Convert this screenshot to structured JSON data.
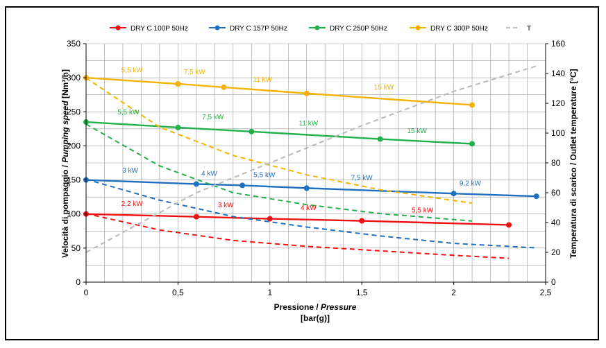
{
  "chart_data": {
    "type": "line",
    "legend_position": "top",
    "grid": true,
    "xlabel": "Pressione / Pressure",
    "xlabel_plain": "Pressione / ",
    "xlabel_italic": "Pressure",
    "xunit": "[bar(g)]",
    "ylabel": "Velocità di pompaggio / Pumping speed [Nm³/h]",
    "ylabel_plain1": "Velocità di pompaggio / ",
    "ylabel_italic": "Pumping speed",
    "ylabel_plain2": " [Nm³/h]",
    "y2label": "Temperatura di scarico / Outlet temperature [°C]",
    "xlim": [
      0,
      2.5
    ],
    "ylim": [
      0,
      350
    ],
    "y2lim": [
      0,
      160
    ],
    "x_ticks": [
      "0",
      "0,5",
      "1",
      "1,5",
      "2",
      "2,5"
    ],
    "y_ticks": [
      "0",
      "50",
      "100",
      "150",
      "200",
      "250",
      "300",
      "350"
    ],
    "y2_ticks": [
      "0",
      "20",
      "40",
      "60",
      "80",
      "100",
      "120",
      "140",
      "160"
    ],
    "series": [
      {
        "name": "DRY C 100P 50Hz",
        "color": "#ee1111",
        "x": [
          0,
          0.6,
          1.0,
          1.5,
          2.3
        ],
        "y": [
          100,
          96,
          93,
          90,
          84
        ],
        "temp_x": [
          0,
          0.4,
          0.8,
          1.2,
          1.6,
          2.0,
          2.3
        ],
        "temp_y": [
          46,
          35,
          28,
          24,
          21,
          18,
          16
        ],
        "power_labels": [
          {
            "x": 0.25,
            "y": 112,
            "text": "2,2 kW"
          },
          {
            "x": 0.76,
            "y": 110,
            "text": "3 kW"
          },
          {
            "x": 1.21,
            "y": 106,
            "text": "4 kW"
          },
          {
            "x": 1.83,
            "y": 102,
            "text": "5,5 kW"
          }
        ]
      },
      {
        "name": "DRY C 157P 50Hz",
        "color": "#1f6fc0",
        "x": [
          0,
          0.6,
          0.85,
          1.2,
          2.0,
          2.45
        ],
        "y": [
          150,
          144,
          142,
          138,
          130,
          126
        ],
        "temp_x": [
          0,
          0.4,
          0.8,
          1.2,
          1.6,
          2.0,
          2.45
        ],
        "temp_y": [
          69,
          55,
          44,
          37,
          31,
          26,
          23
        ],
        "power_labels": [
          {
            "x": 0.24,
            "y": 161,
            "text": "3 kW"
          },
          {
            "x": 0.67,
            "y": 156,
            "text": "4 kW"
          },
          {
            "x": 0.97,
            "y": 154,
            "text": "5,5 kW"
          },
          {
            "x": 1.5,
            "y": 150,
            "text": "7,5 kW"
          },
          {
            "x": 2.09,
            "y": 142,
            "text": "9,2 kW"
          }
        ]
      },
      {
        "name": "DRY C 250P 50Hz",
        "color": "#22b04a",
        "x": [
          0,
          0.5,
          0.9,
          1.6,
          2.1
        ],
        "y": [
          235,
          227,
          221,
          210,
          203
        ],
        "temp_x": [
          0,
          0.4,
          0.8,
          1.2,
          1.6,
          2.1
        ],
        "temp_y": [
          106,
          78,
          60,
          52,
          46,
          41
        ],
        "power_labels": [
          {
            "x": 0.23,
            "y": 246,
            "text": "5,5 kW"
          },
          {
            "x": 0.69,
            "y": 239,
            "text": "7,5 kW"
          },
          {
            "x": 1.21,
            "y": 230,
            "text": "11 kW"
          },
          {
            "x": 1.8,
            "y": 219,
            "text": "15 kW"
          }
        ]
      },
      {
        "name": "DRY C 300P 50Hz",
        "color": "#f5b300",
        "x": [
          0,
          0.5,
          0.75,
          1.2,
          2.1
        ],
        "y": [
          300,
          291,
          286,
          277,
          260
        ],
        "temp_x": [
          0,
          0.4,
          0.8,
          1.2,
          1.6,
          2.1
        ],
        "temp_y": [
          137,
          104,
          85,
          72,
          62,
          53
        ],
        "power_labels": [
          {
            "x": 0.25,
            "y": 308,
            "text": "5,5 kW"
          },
          {
            "x": 0.59,
            "y": 305,
            "text": "7,5 kW"
          },
          {
            "x": 0.96,
            "y": 294,
            "text": "11 kW"
          },
          {
            "x": 1.62,
            "y": 283,
            "text": "15 kW"
          }
        ]
      },
      {
        "name": "T",
        "color": "#bdbdbd",
        "dashed": true,
        "x": [
          0,
          0.3,
          0.6,
          1.0,
          1.5,
          2.0,
          2.45
        ],
        "y_temperature": [
          20,
          40,
          60,
          80,
          105,
          128,
          145
        ]
      }
    ]
  }
}
